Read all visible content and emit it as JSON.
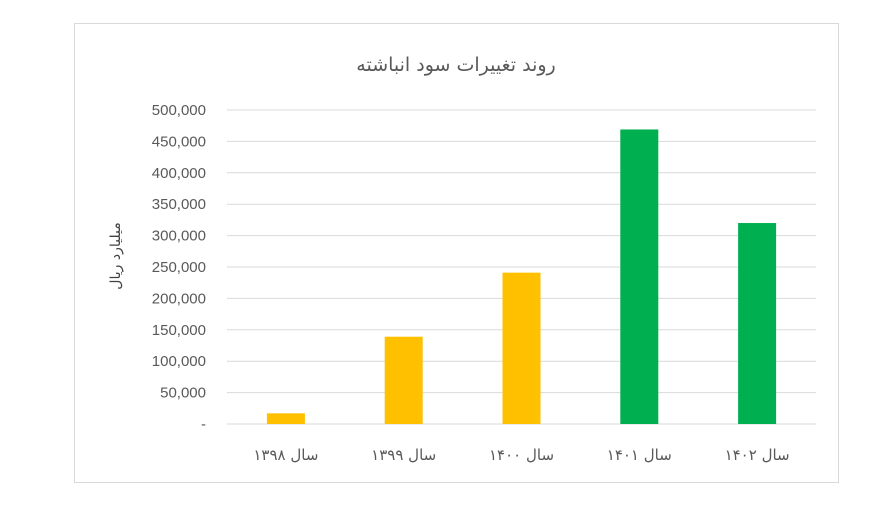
{
  "chart_data": {
    "type": "bar",
    "title": "روند تغییرات سود انباشته",
    "ylabel": "میلیارد ریال",
    "xlabel": "",
    "categories": [
      "سال ۱۳۹۸",
      "سال ۱۳۹۹",
      "سال ۱۴۰۰",
      "سال ۱۴۰۱",
      "سال ۱۴۰۲"
    ],
    "values": [
      17000,
      139000,
      241000,
      469000,
      320000
    ],
    "bar_colors": [
      "#FFC000",
      "#FFC000",
      "#FFC000",
      "#00B050",
      "#00B050"
    ],
    "ylim": [
      0,
      500000
    ],
    "yticks": [
      0,
      50000,
      100000,
      150000,
      200000,
      250000,
      300000,
      350000,
      400000,
      450000,
      500000
    ],
    "ytick_labels": [
      "-",
      "50,000",
      "100,000",
      "150,000",
      "200,000",
      "250,000",
      "300,000",
      "350,000",
      "400,000",
      "450,000",
      "500,000"
    ],
    "grid": true,
    "legend": "none"
  }
}
